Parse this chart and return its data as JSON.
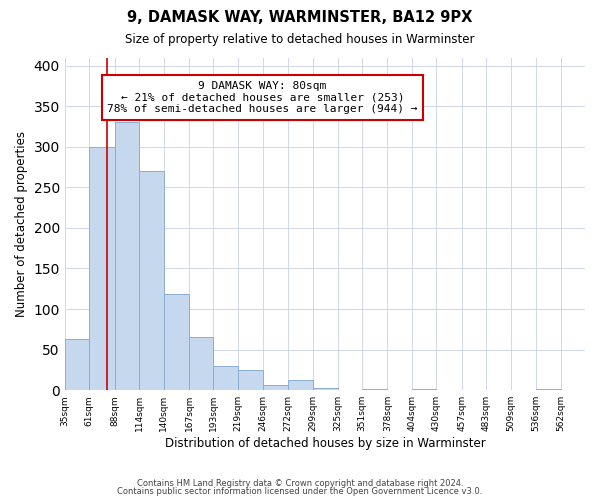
{
  "title": "9, DAMASK WAY, WARMINSTER, BA12 9PX",
  "subtitle": "Size of property relative to detached houses in Warminster",
  "xlabel": "Distribution of detached houses by size in Warminster",
  "ylabel": "Number of detached properties",
  "footer_line1": "Contains HM Land Registry data © Crown copyright and database right 2024.",
  "footer_line2": "Contains public sector information licensed under the Open Government Licence v3.0.",
  "bin_labels": [
    "35sqm",
    "61sqm",
    "88sqm",
    "114sqm",
    "140sqm",
    "167sqm",
    "193sqm",
    "219sqm",
    "246sqm",
    "272sqm",
    "299sqm",
    "325sqm",
    "351sqm",
    "378sqm",
    "404sqm",
    "430sqm",
    "457sqm",
    "483sqm",
    "509sqm",
    "536sqm",
    "562sqm"
  ],
  "bar_heights": [
    63,
    300,
    330,
    270,
    118,
    65,
    30,
    25,
    7,
    13,
    3,
    0,
    2,
    0,
    2,
    0,
    0,
    0,
    0,
    2,
    0
  ],
  "bar_color": "#c5d8ed",
  "bar_edge_color": "#8aafd4",
  "ylim": [
    0,
    410
  ],
  "yticks": [
    0,
    50,
    100,
    150,
    200,
    250,
    300,
    350,
    400
  ],
  "property_line_color": "#cc0000",
  "annotation_text": "9 DAMASK WAY: 80sqm\n← 21% of detached houses are smaller (253)\n78% of semi-detached houses are larger (944) →",
  "annotation_box_color": "#ffffff",
  "annotation_box_edge_color": "#cc0000",
  "background_color": "#ffffff",
  "grid_color": "#d0d8e8",
  "bin_edges": [
    35,
    61,
    88,
    114,
    140,
    167,
    193,
    219,
    246,
    272,
    299,
    325,
    351,
    378,
    404,
    430,
    457,
    483,
    509,
    536,
    562,
    588
  ]
}
